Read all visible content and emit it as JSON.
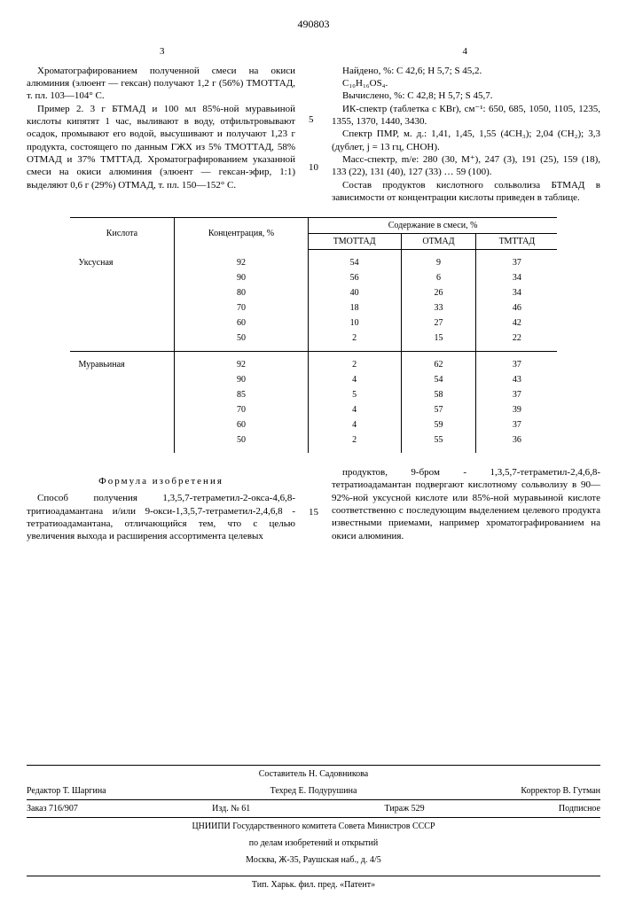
{
  "doc_number": "490803",
  "page_left": "3",
  "page_right": "4",
  "line_numbers": [
    "5",
    "10",
    "15"
  ],
  "left_col": {
    "p1": "Хроматографированием полученной смеси на окиси алюминия (элюент — гексан) получают 1,2 г (56%) ТМОТТАД, т. пл. 103—104° С.",
    "p2": "Пример 2. 3 г БТМАД и 100 мл 85%-ной муравьиной кислоты кипятят 1 час, выливают в воду, отфильтровывают осадок, промывают его водой, высушивают и получают 1,23 г продукта, состоящего по данным ГЖХ из 5% ТМОТТАД, 58% ОТМАД и 37% ТМТТАД. Хроматографированием указанной смеси на окиси алюминия (элюент — гексан-эфир, 1:1) выделяют 0,6 г (29%) ОТМАД, т. пл. 150—152° С."
  },
  "right_col": {
    "p1": "Найдено, %: С 42,6; Н 5,7; S 45,2.",
    "p2": "C₁₀H₁₆OS₄.",
    "p3": "Вычислено, %: С 42,8; Н 5,7; S 45,7.",
    "p4": "ИК-спектр (таблетка с КВr), см⁻¹: 650, 685, 1050, 1105, 1235, 1355, 1370, 1440, 3430.",
    "p5": "Спектр ПМР, м. д.: 1,41, 1,45, 1,55 (4СН₃); 2,04 (СН₂); 3,3 (дублет, j = 13 гц, СНОН).",
    "p6": "Масс-спектр, m/e: 280 (30, М⁺), 247 (3), 191 (25), 159 (18), 133 (22), 131 (40), 127 (33) … 59 (100).",
    "p7": "Состав продуктов кислотного сольволиза БТМАД в зависимости от концентрации кислоты приведен в таблице."
  },
  "table": {
    "headers": {
      "acid": "Кислота",
      "conc": "Концентрация, %",
      "content": "Содержание в смеси, %",
      "c1": "ТМОТТАД",
      "c2": "ОТМАД",
      "c3": "ТМТТАД"
    },
    "acid1": "Уксусная",
    "acid2": "Муравьиная",
    "rows1": [
      {
        "conc": "92",
        "v1": "54",
        "v2": "9",
        "v3": "37"
      },
      {
        "conc": "90",
        "v1": "56",
        "v2": "6",
        "v3": "34"
      },
      {
        "conc": "80",
        "v1": "40",
        "v2": "26",
        "v3": "34"
      },
      {
        "conc": "70",
        "v1": "18",
        "v2": "33",
        "v3": "46"
      },
      {
        "conc": "60",
        "v1": "10",
        "v2": "27",
        "v3": "42"
      },
      {
        "conc": "50",
        "v1": "2",
        "v2": "15",
        "v3": "22"
      }
    ],
    "rows2": [
      {
        "conc": "92",
        "v1": "2",
        "v2": "62",
        "v3": "37"
      },
      {
        "conc": "90",
        "v1": "4",
        "v2": "54",
        "v3": "43"
      },
      {
        "conc": "85",
        "v1": "5",
        "v2": "58",
        "v3": "37"
      },
      {
        "conc": "70",
        "v1": "4",
        "v2": "57",
        "v3": "39"
      },
      {
        "conc": "60",
        "v1": "4",
        "v2": "59",
        "v3": "37"
      },
      {
        "conc": "50",
        "v1": "2",
        "v2": "55",
        "v3": "36"
      }
    ]
  },
  "formula": {
    "title": "Формула изобретения",
    "left": "Способ получения 1,3,5,7-тетраметил-2-окса-4,6,8-тритиоадамантана и/или 9-окси-1,3,5,7-тетраметил-2,4,6,8 - тетратиоадамантана, отличающийся тем, что с целью увеличения выхода и расширения ассортимента целевых",
    "right": "продуктов, 9-бром - 1,3,5,7-тетраметил-2,4,6,8-тетратиоадамантан подвергают кислотному сольволизу в 90—92%-ной уксусной кислоте или 85%-ной муравьиной кислоте соответственно с последующим выделением целевого продукта известными приемами, например хроматографированием на окиси алюминия."
  },
  "footer": {
    "compiler": "Составитель Н. Садовникова",
    "editor": "Редактор Т. Шаргина",
    "techred": "Техред Е. Подурушина",
    "corrector": "Корректор В. Гутман",
    "order": "Заказ 716/907",
    "izd": "Изд. № 61",
    "tirazh": "Тираж 529",
    "podpisnoe": "Подписное",
    "org1": "ЦНИИПИ Государственного комитета Совета Министров СССР",
    "org2": "по делам изобретений и открытий",
    "org3": "Москва, Ж-35, Раушская наб., д. 4/5",
    "printer": "Тип. Харьк. фил. пред. «Патент»"
  }
}
